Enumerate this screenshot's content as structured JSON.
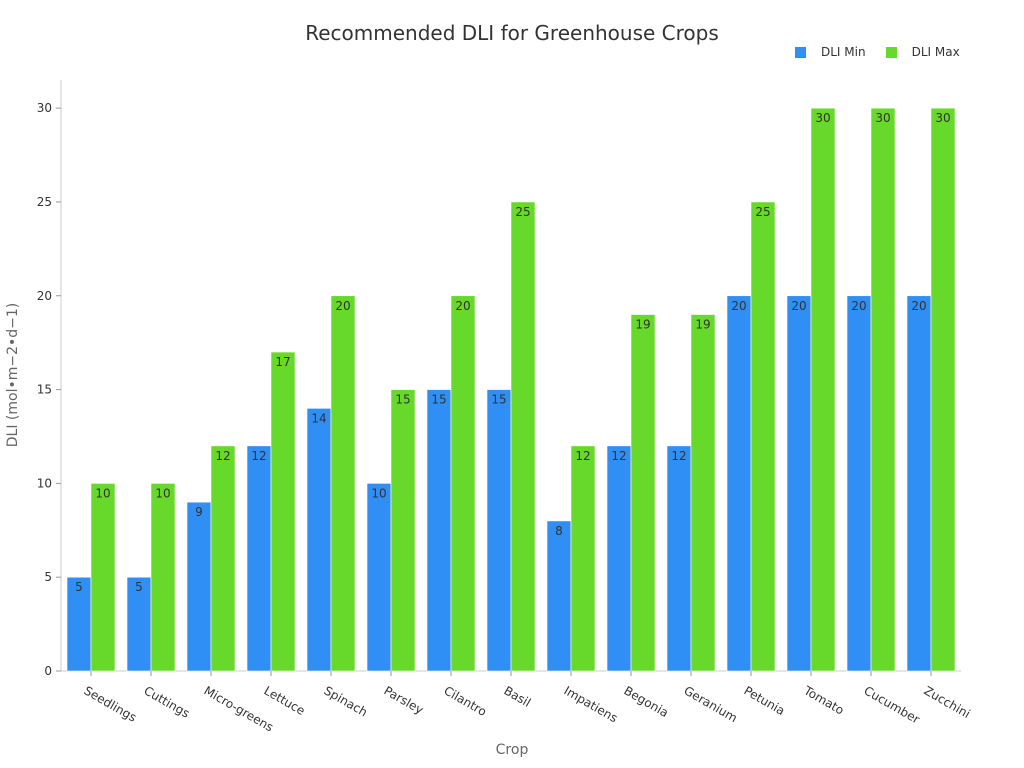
{
  "chart_data": {
    "type": "bar",
    "title": "Recommended DLI for Greenhouse Crops",
    "xlabel": "Crop",
    "ylabel": "DLI (mol•m−2•d−1)",
    "categories": [
      "Seedlings",
      "Cuttings",
      "Micro-greens",
      "Lettuce",
      "Spinach",
      "Parsley",
      "Cilantro",
      "Basil",
      "Impatiens",
      "Begonia",
      "Geranium",
      "Petunia",
      "Tomato",
      "Cucumber",
      "Zucchini"
    ],
    "series": [
      {
        "name": "DLI Min",
        "color": "#2f8ff5",
        "values": [
          5,
          5,
          9,
          12,
          14,
          10,
          15,
          15,
          8,
          12,
          12,
          20,
          20,
          20,
          20
        ]
      },
      {
        "name": "DLI Max",
        "color": "#66d92a",
        "values": [
          10,
          10,
          12,
          17,
          20,
          15,
          20,
          25,
          12,
          19,
          19,
          25,
          30,
          30,
          30
        ]
      }
    ],
    "ylim": [
      0,
      31.5
    ],
    "yticks": [
      0,
      5,
      10,
      15,
      20,
      25,
      30
    ],
    "grid": false,
    "legend_position": "top-right",
    "data_labels": true
  }
}
